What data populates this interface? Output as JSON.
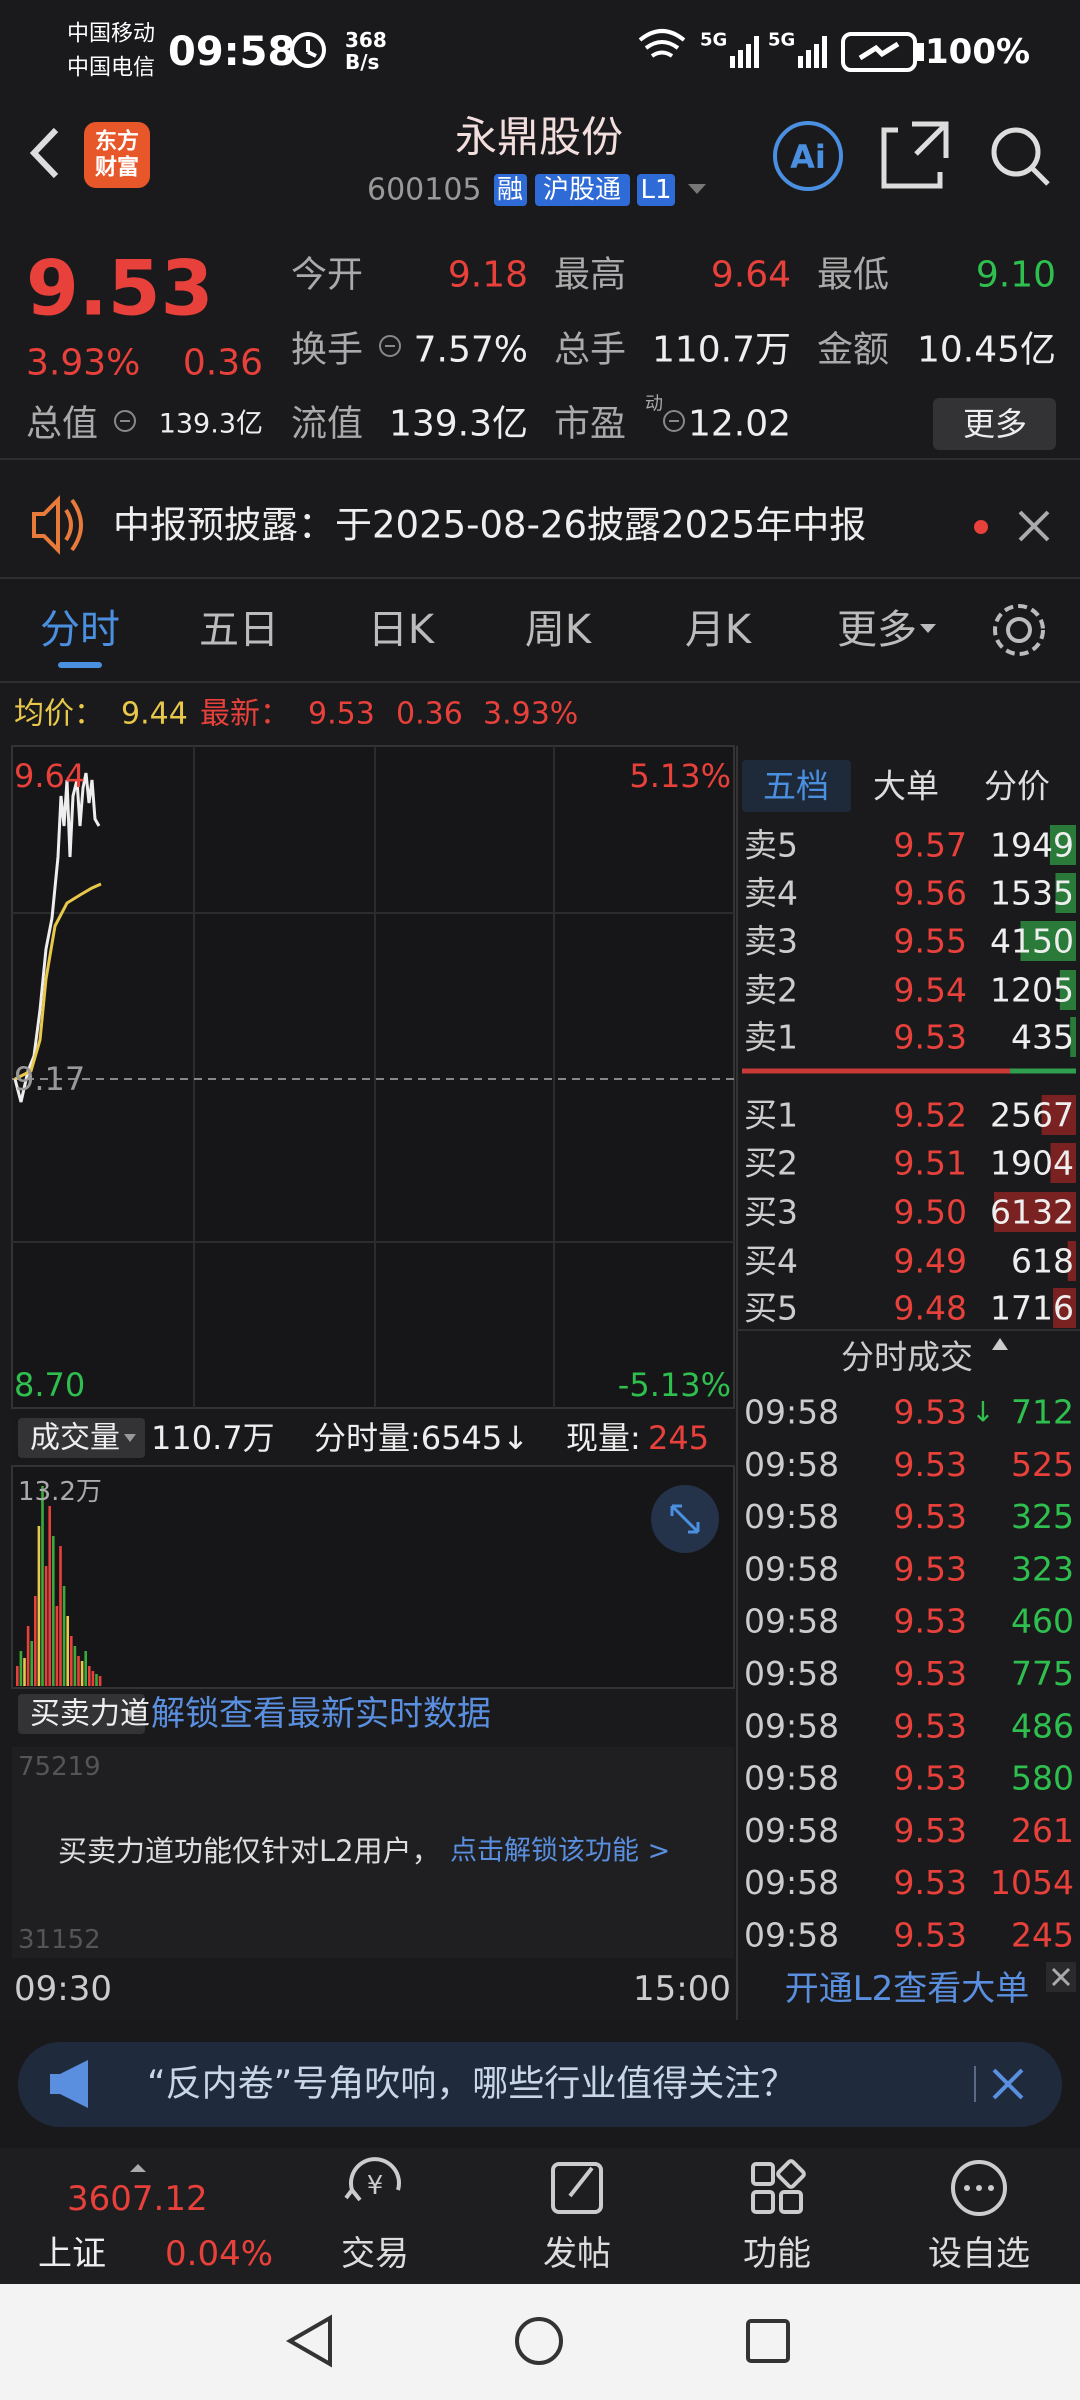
{
  "status_bar": {
    "carrier_1": "中国移动",
    "carrier_2": "中国电信",
    "time": "09:58",
    "speed": "368",
    "speed_unit": "B/s",
    "network_1": "5G",
    "network_2": "5G",
    "battery": "100%"
  },
  "header": {
    "logo_1": "东方",
    "logo_2": "财富",
    "name": "永鼎股份",
    "code": "600105",
    "tags": [
      "融",
      "沪股通",
      "L1"
    ]
  },
  "quote": {
    "price": "9.53",
    "change_pct": "3.93%",
    "change": "0.36",
    "stats": [
      {
        "label": "今开",
        "value": "9.18",
        "color": "#e8403a"
      },
      {
        "label": "最高",
        "value": "9.64",
        "color": "#e8403a"
      },
      {
        "label": "最低",
        "value": "9.10",
        "color": "#2fbf4f"
      },
      {
        "label": "换手",
        "value": "7.57%",
        "color": "#eeeeee"
      },
      {
        "label": "总手",
        "value": "110.7万",
        "color": "#eeeeee"
      },
      {
        "label": "金额",
        "value": "10.45亿",
        "color": "#eeeeee"
      },
      {
        "label": "总值",
        "value": "139.3亿",
        "color": "#eeeeee"
      },
      {
        "label": "流值",
        "value": "139.3亿",
        "color": "#eeeeee"
      },
      {
        "label": "市盈",
        "sup": "动",
        "value": "12.02",
        "color": "#eeeeee"
      }
    ],
    "more": "更多"
  },
  "notice": {
    "text": "中报预披露：于2025-08-26披露2025年中报"
  },
  "tabs": [
    "分时",
    "五日",
    "日K",
    "周K",
    "月K",
    "更多"
  ],
  "summary": {
    "avg_label": "均价：",
    "avg": "9.44",
    "latest_label": "最新：",
    "latest": "9.53",
    "change": "0.36",
    "change_pct": "3.93%"
  },
  "chart": {
    "high": "9.64",
    "high_pct": "5.13%",
    "base": "9.17",
    "low": "8.70",
    "low_pct": "-5.13%",
    "start": "09:30",
    "end": "15:00"
  },
  "volume": {
    "label": "成交量",
    "total": "110.7万",
    "minute": "分时量:6545↓",
    "current_label": "现量:",
    "current": "245",
    "max": "13.2万"
  },
  "power": {
    "label": "买卖力道",
    "unlock": "解锁查看最新实时数据",
    "notice": "买卖力道功能仅针对L2用户，",
    "link": "点击解锁该功能 >",
    "faint": [
      "75219",
      "31152"
    ]
  },
  "order_book": {
    "tabs": [
      "五档",
      "大单",
      "分价"
    ],
    "asks": [
      {
        "label": "卖5",
        "price": "9.57",
        "volume": "1949"
      },
      {
        "label": "卖4",
        "price": "9.56",
        "volume": "1535"
      },
      {
        "label": "卖3",
        "price": "9.55",
        "volume": "4150"
      },
      {
        "label": "卖2",
        "price": "9.54",
        "volume": "1205"
      },
      {
        "label": "卖1",
        "price": "9.53",
        "volume": "435"
      }
    ],
    "bids": [
      {
        "label": "买1",
        "price": "9.52",
        "volume": "2567"
      },
      {
        "label": "买2",
        "price": "9.51",
        "volume": "1904"
      },
      {
        "label": "买3",
        "price": "9.50",
        "volume": "6132"
      },
      {
        "label": "买4",
        "price": "9.49",
        "volume": "618"
      },
      {
        "label": "买5",
        "price": "9.48",
        "volume": "1716"
      }
    ]
  },
  "trades": {
    "title": "分时成交",
    "rows": [
      {
        "time": "09:58",
        "price": "9.53",
        "arrow": "↓",
        "volume": "712",
        "color": "#2fbf4f"
      },
      {
        "time": "09:58",
        "price": "9.53",
        "volume": "525",
        "color": "#e8403a"
      },
      {
        "time": "09:58",
        "price": "9.53",
        "volume": "325",
        "color": "#2fbf4f"
      },
      {
        "time": "09:58",
        "price": "9.53",
        "volume": "323",
        "color": "#2fbf4f"
      },
      {
        "time": "09:58",
        "price": "9.53",
        "volume": "460",
        "color": "#2fbf4f"
      },
      {
        "time": "09:58",
        "price": "9.53",
        "volume": "775",
        "color": "#2fbf4f"
      },
      {
        "time": "09:58",
        "price": "9.53",
        "volume": "486",
        "color": "#2fbf4f"
      },
      {
        "time": "09:58",
        "price": "9.53",
        "volume": "580",
        "color": "#2fbf4f"
      },
      {
        "time": "09:58",
        "price": "9.53",
        "volume": "261",
        "color": "#e8403a"
      },
      {
        "time": "09:58",
        "price": "9.53",
        "volume": "1054",
        "color": "#e8403a"
      },
      {
        "time": "09:58",
        "price": "9.53",
        "volume": "245",
        "color": "#e8403a"
      }
    ],
    "footer": "开通L2查看大单"
  },
  "banner": {
    "text": "“反内卷”号角吹响，哪些行业值得关注？"
  },
  "bottom_nav": {
    "index_value": "3607.12",
    "index_name": "上证",
    "index_change": "0.04%",
    "items": [
      "交易",
      "发帖",
      "功能",
      "设自选"
    ]
  }
}
